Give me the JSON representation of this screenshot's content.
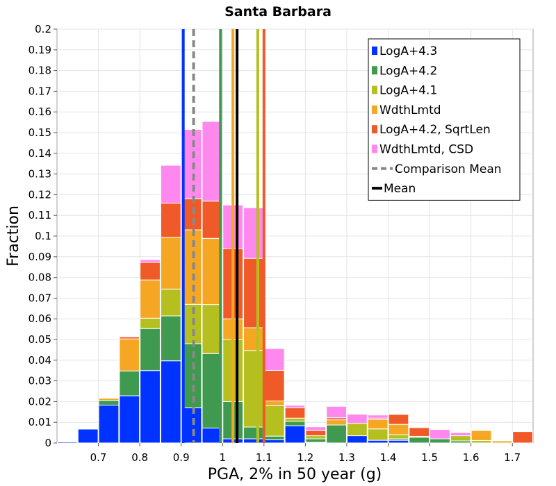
{
  "chart_data": {
    "type": "bar",
    "title": "Santa Barbara",
    "xlabel": "PGA, 2% in 50 year (g)",
    "ylabel": "Fraction",
    "xlim": [
      0.6,
      1.75
    ],
    "ylim": [
      0,
      0.2
    ],
    "xticks": [
      "0.7",
      "0.8",
      "0.9",
      "1",
      "1.1",
      "1.2",
      "1.3",
      "1.4",
      "1.5",
      "1.6",
      "1.7"
    ],
    "yticks": [
      "0",
      "0.01",
      "0.02",
      "0.03",
      "0.04",
      "0.05",
      "0.06",
      "0.07",
      "0.08",
      "0.09",
      "0.1",
      "0.11",
      "0.12",
      "0.13",
      "0.14",
      "0.15",
      "0.16",
      "0.17",
      "0.18",
      "0.19",
      "0.2"
    ],
    "bin_width": 0.05,
    "grid": true,
    "legend_placement": "top-right",
    "categories": [
      0.625,
      0.675,
      0.725,
      0.775,
      0.825,
      0.875,
      0.925,
      0.975,
      1.025,
      1.075,
      1.125,
      1.175,
      1.225,
      1.275,
      1.325,
      1.375,
      1.425,
      1.475,
      1.525,
      1.575,
      1.625,
      1.675,
      1.725
    ],
    "series": [
      {
        "name": "LogA+4.3",
        "color": "#0033ff",
        "values": [
          0.0005,
          0.0067,
          0.0183,
          0.0228,
          0.035,
          0.0397,
          0.017,
          0.0072,
          0.002,
          0.002,
          0.0015,
          0.0083,
          0.0003,
          0.0,
          0.0035,
          0.0013,
          0.0013,
          0.0,
          0.0,
          0.0,
          0.0,
          0.0,
          0.0
        ]
      },
      {
        "name": "LogA+4.2",
        "color": "#3f9a4f",
        "values": [
          0,
          0,
          0.0023,
          0.012,
          0.0203,
          0.0217,
          0.031,
          0.036,
          0.018,
          0.0057,
          0.0018,
          0.0022,
          0.0017,
          0.0087,
          0.0,
          0.0,
          0.0007,
          0.0027,
          0.002,
          0.001,
          0,
          0,
          0
        ]
      },
      {
        "name": "LogA+4.1",
        "color": "#b5c020",
        "values": [
          0,
          0,
          0,
          0,
          0.005,
          0.013,
          0.019,
          0.0237,
          0.03,
          0.037,
          0.0147,
          0.0015,
          0.0015,
          0.0,
          0.006,
          0.0055,
          0.002,
          0,
          0,
          0.0025,
          0.0012,
          0,
          0
        ]
      },
      {
        "name": "WdthLmtd",
        "color": "#f5a623",
        "values": [
          0,
          0,
          0.001,
          0.0155,
          0.0185,
          0.025,
          0.036,
          0.032,
          0.01,
          0.011,
          0.0023,
          0.0,
          0.0,
          0.0025,
          0.0,
          0.0045,
          0.005,
          0.0005,
          0,
          0,
          0.0048,
          0.001,
          0
        ]
      },
      {
        "name": "LogA+4.2, SqrtLen",
        "color": "#f05a28",
        "values": [
          0,
          0,
          0,
          0.001,
          0.0085,
          0.0165,
          0.015,
          0.018,
          0.034,
          0.0335,
          0.0148,
          0.005,
          0.0025,
          0.001,
          0.0,
          0.0007,
          0.0048,
          0.0042,
          0,
          0,
          0,
          0,
          0.0055
        ]
      },
      {
        "name": "WdthLmtd, CSD",
        "color": "#ff88ee",
        "values": [
          0,
          0,
          0,
          0,
          0.0013,
          0.0183,
          0.0335,
          0.0385,
          0.021,
          0.0245,
          0.0105,
          0.0012,
          0.0018,
          0.0055,
          0.0044,
          0.0015,
          0.0,
          0.0,
          0.0045,
          0.0015,
          0,
          0,
          0
        ]
      }
    ],
    "vertical_lines": [
      {
        "name": "LogA+4.3",
        "x": 0.905,
        "color": "#0033ff",
        "style": "solid"
      },
      {
        "name": "LogA+4.2",
        "x": 0.995,
        "color": "#3f9a4f",
        "style": "solid"
      },
      {
        "name": "WdthLmtd",
        "x": 1.025,
        "color": "#f5a623",
        "style": "solid"
      },
      {
        "name": "LogA+4.1",
        "x": 1.085,
        "color": "#b5c020",
        "style": "solid"
      },
      {
        "name": "LogA+4.2, SqrtLen",
        "x": 1.1,
        "color": "#f05a28",
        "style": "solid"
      },
      {
        "name": "Comparison Mean",
        "x": 0.93,
        "color": "#888888",
        "style": "dashed"
      },
      {
        "name": "Mean",
        "x": 1.035,
        "color": "#000000",
        "style": "solid"
      }
    ],
    "legend": [
      {
        "label": "LogA+4.3",
        "color": "#0033ff",
        "kind": "box"
      },
      {
        "label": "LogA+4.2",
        "color": "#3f9a4f",
        "kind": "box"
      },
      {
        "label": "LogA+4.1",
        "color": "#b5c020",
        "kind": "box"
      },
      {
        "label": "WdthLmtd",
        "color": "#f5a623",
        "kind": "box"
      },
      {
        "label": "LogA+4.2, SqrtLen",
        "color": "#f05a28",
        "kind": "box"
      },
      {
        "label": "WdthLmtd, CSD",
        "color": "#ff88ee",
        "kind": "box"
      },
      {
        "label": "Comparison Mean",
        "color": "#888888",
        "kind": "dashed"
      },
      {
        "label": "Mean",
        "color": "#000000",
        "kind": "solid"
      }
    ]
  }
}
